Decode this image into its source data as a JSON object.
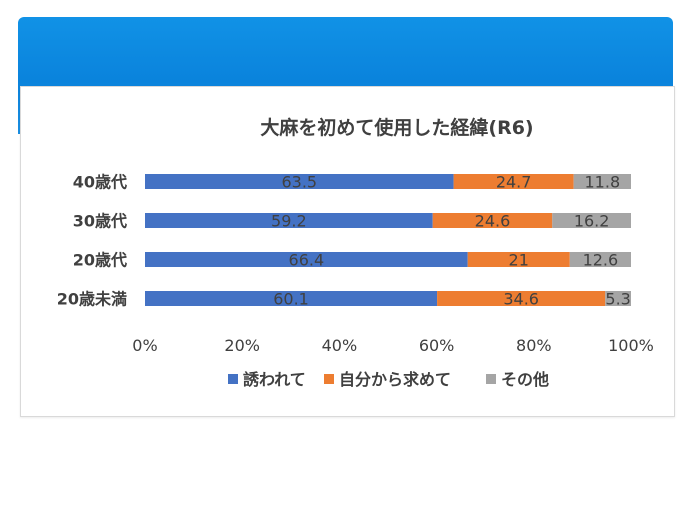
{
  "chart_data": {
    "type": "bar",
    "orientation": "horizontal",
    "stacked": true,
    "title": "大麻を初めて使用した経緯(R6)",
    "categories": [
      "40歳代",
      "30歳代",
      "20歳代",
      "20歳未満"
    ],
    "series": [
      {
        "name": "誘われて",
        "color": "#4472c4",
        "values": [
          63.5,
          59.2,
          66.4,
          60.1
        ]
      },
      {
        "name": "自分から求めて",
        "color": "#ed7d31",
        "values": [
          24.7,
          24.6,
          21,
          34.6
        ]
      },
      {
        "name": "その他",
        "color": "#a5a5a5",
        "values": [
          11.8,
          16.2,
          12.6,
          5.3
        ]
      }
    ],
    "x_ticks": [
      "0%",
      "20%",
      "40%",
      "60%",
      "80%",
      "100%"
    ],
    "xlim": [
      0,
      100
    ],
    "grid": false,
    "legend_position": "bottom"
  }
}
